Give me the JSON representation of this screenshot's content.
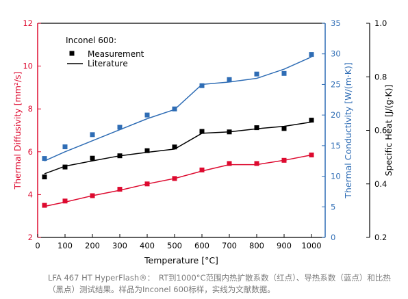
{
  "chart_data": {
    "type": "line",
    "x": [
      25,
      100,
      200,
      300,
      400,
      500,
      600,
      700,
      800,
      900,
      1000
    ],
    "xlabel": "Temperature [°C]",
    "xlim": [
      0,
      1050
    ],
    "xticks": [
      0,
      100,
      200,
      300,
      400,
      500,
      600,
      700,
      800,
      900,
      1000
    ],
    "legend": {
      "title": "Inconel 600:",
      "items": [
        "Measurement",
        "Literature"
      ],
      "placement": "top-left"
    },
    "axes": {
      "diffusivity": {
        "label": "Thermal Diffusivity [mm²/s]",
        "side": "left",
        "ylim": [
          2,
          12
        ],
        "ticks": [
          2,
          4,
          6,
          8,
          10,
          12
        ],
        "color": "#dd0a2f"
      },
      "conductivity": {
        "label": "Thermal Conductivity [W/(m·K)]",
        "side": "right",
        "ylim": [
          0,
          35
        ],
        "ticks": [
          0,
          5,
          10,
          15,
          20,
          25,
          30,
          35
        ],
        "color": "#2f6db5"
      },
      "specific_heat": {
        "label": "Specific Heat [J/(g·K)]",
        "side": "right-outer",
        "ylim": [
          0.2,
          1.0
        ],
        "ticks": [
          "0.2",
          "0.4",
          "0.6",
          "0.8",
          "1.0"
        ],
        "color": "#000000"
      }
    },
    "series": [
      {
        "axis": "diffusivity",
        "color": "#dd0a2f",
        "measurement": [
          3.5,
          3.7,
          3.95,
          4.25,
          4.5,
          4.75,
          5.15,
          5.45,
          5.45,
          5.6,
          5.85
        ],
        "literature": [
          3.45,
          3.65,
          3.95,
          4.2,
          4.5,
          4.75,
          5.1,
          5.4,
          5.4,
          5.6,
          5.85
        ]
      },
      {
        "axis": "conductivity",
        "color": "#2f6db5",
        "measurement": [
          12.9,
          14.8,
          16.8,
          18.0,
          20.0,
          21.0,
          24.8,
          25.8,
          26.7,
          26.8,
          29.9
        ],
        "literature": [
          12.5,
          14.0,
          15.8,
          17.6,
          19.4,
          20.9,
          25.0,
          25.4,
          26.0,
          27.5,
          29.5
        ]
      },
      {
        "axis": "specific_heat",
        "color": "#000000",
        "measurement": [
          0.426,
          0.463,
          0.496,
          0.505,
          0.524,
          0.538,
          0.596,
          0.594,
          0.61,
          0.607,
          0.638
        ],
        "literature": [
          0.438,
          0.466,
          0.486,
          0.505,
          0.518,
          0.53,
          0.589,
          0.594,
          0.606,
          0.615,
          0.631
        ]
      }
    ]
  },
  "caption": "LFA 467 HT HyperFlash®：　RT到1000°C范围内热扩散系数（红点）、导热系数（蓝点）和比热（黑点）测试结果。样品为Inconel 600标样，实线为文献数据。"
}
